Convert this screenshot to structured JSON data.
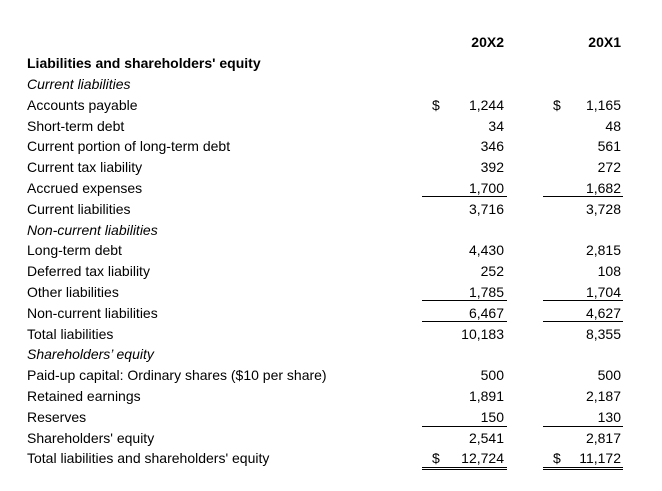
{
  "columns": [
    "20X2",
    "20X1"
  ],
  "section_title": "Liabilities and shareholders' equity",
  "rows": [
    {
      "label": "Current liabilities",
      "style": "italic",
      "v1": "",
      "v2": "",
      "dollar1": "",
      "dollar2": ""
    },
    {
      "label": "Accounts payable",
      "style": "normal",
      "v1": "1,244",
      "v2": "1,165",
      "dollar1": "$",
      "dollar2": "$"
    },
    {
      "label": "Short-term debt",
      "style": "normal",
      "v1": "34",
      "v2": "48",
      "dollar1": "",
      "dollar2": ""
    },
    {
      "label": "Current portion of long-term debt",
      "style": "normal",
      "v1": "346",
      "v2": "561",
      "dollar1": "",
      "dollar2": ""
    },
    {
      "label": "Current tax liability",
      "style": "normal",
      "v1": "392",
      "v2": "272",
      "dollar1": "",
      "dollar2": ""
    },
    {
      "label": "Accrued expenses",
      "style": "normal",
      "v1": "1,700",
      "v2": "1,682",
      "dollar1": "",
      "dollar2": ""
    },
    {
      "label": "Current liabilities",
      "style": "normal",
      "v1": "3,716",
      "v2": "3,728",
      "dollar1": "",
      "dollar2": ""
    },
    {
      "label": "Non-current liabilities",
      "style": "italic",
      "v1": "",
      "v2": "",
      "dollar1": "",
      "dollar2": ""
    },
    {
      "label": "Long-term debt",
      "style": "normal",
      "v1": "4,430",
      "v2": "2,815",
      "dollar1": "",
      "dollar2": ""
    },
    {
      "label": "Deferred tax liability",
      "style": "normal",
      "v1": "252",
      "v2": "108",
      "dollar1": "",
      "dollar2": ""
    },
    {
      "label": "Other liabilities",
      "style": "normal",
      "v1": "1,785",
      "v2": "1,704",
      "dollar1": "",
      "dollar2": ""
    },
    {
      "label": "Non-current liabilities",
      "style": "normal",
      "v1": "6,467",
      "v2": "4,627",
      "dollar1": "",
      "dollar2": ""
    },
    {
      "label": "Total liabilities",
      "style": "normal",
      "v1": "10,183",
      "v2": "8,355",
      "dollar1": "",
      "dollar2": ""
    },
    {
      "label": "Shareholders’ equity",
      "style": "italic",
      "v1": "",
      "v2": "",
      "dollar1": "",
      "dollar2": ""
    },
    {
      "label": "Paid-up capital: Ordinary shares ($10 per share)",
      "style": "normal",
      "v1": "500",
      "v2": "500",
      "dollar1": "",
      "dollar2": ""
    },
    {
      "label": "Retained earnings",
      "style": "normal",
      "v1": "1,891",
      "v2": "2,187",
      "dollar1": "",
      "dollar2": ""
    },
    {
      "label": "Reserves",
      "style": "normal",
      "v1": "150",
      "v2": "130",
      "dollar1": "",
      "dollar2": ""
    },
    {
      "label": "Shareholders' equity",
      "style": "normal",
      "v1": "2,541",
      "v2": "2,817",
      "dollar1": "",
      "dollar2": ""
    },
    {
      "label": "Total liabilities and shareholders' equity",
      "style": "normal",
      "v1": "12,724",
      "v2": "11,172",
      "dollar1": "$",
      "dollar2": "$"
    }
  ]
}
